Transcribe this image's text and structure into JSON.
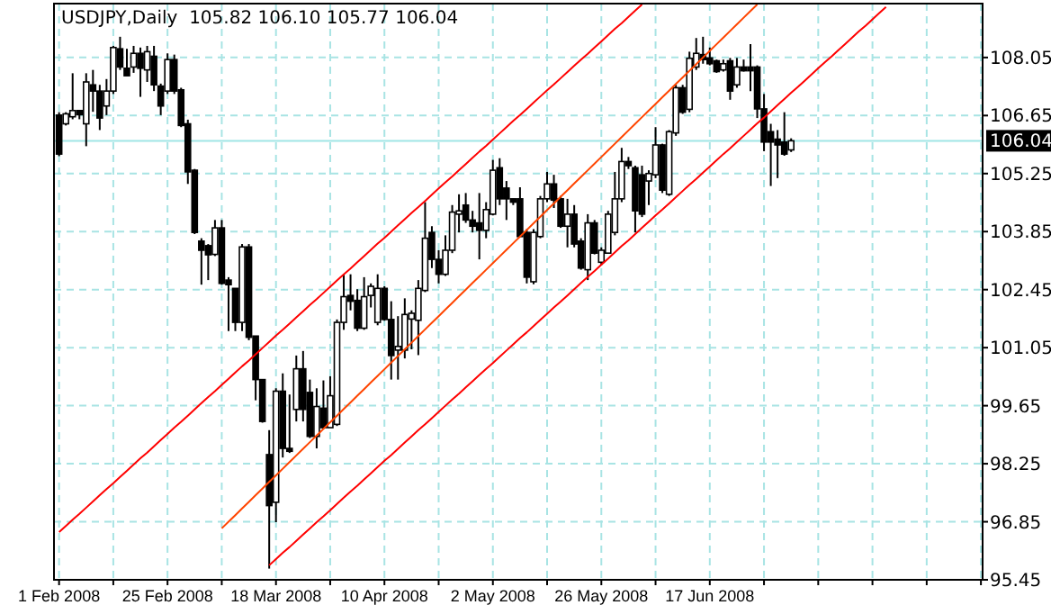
{
  "chart_data": {
    "type": "candlestick",
    "title": "USDJPY,Daily  105.82 106.10 105.77 106.04",
    "categories": [
      "1 Feb 2008",
      null,
      null,
      null,
      null,
      null,
      null,
      null,
      null,
      null,
      null,
      null,
      null,
      null,
      null,
      null,
      "25 Feb 2008",
      null,
      null,
      null,
      null,
      null,
      null,
      null,
      null,
      null,
      null,
      null,
      null,
      null,
      null,
      null,
      "18 Mar 2008",
      null,
      null,
      null,
      null,
      null,
      null,
      null,
      null,
      null,
      null,
      null,
      null,
      null,
      null,
      null,
      "10 Apr 2008",
      null,
      null,
      null,
      null,
      null,
      null,
      null,
      null,
      null,
      null,
      null,
      null,
      null,
      null,
      null,
      "2 May 2008",
      null,
      null,
      null,
      null,
      null,
      null,
      null,
      null,
      null,
      null,
      null,
      null,
      null,
      null,
      null,
      "26 May 2008",
      null,
      null,
      null,
      null,
      null,
      null,
      null,
      null,
      null,
      null,
      null,
      null,
      null,
      null,
      null,
      "17 Jun 2008",
      null,
      null,
      null,
      null,
      null,
      null,
      null,
      null,
      null,
      null,
      null,
      null,
      null,
      null,
      null,
      null,
      null,
      null,
      null,
      null,
      null,
      null,
      null,
      null,
      null,
      null,
      null,
      null,
      null,
      null,
      null,
      null,
      null,
      null,
      null,
      null,
      null,
      null,
      null,
      null
    ],
    "ohlc": [
      [
        106.66,
        106.73,
        105.67,
        105.72
      ],
      [
        106.45,
        106.73,
        106.41,
        106.69
      ],
      [
        106.62,
        107.67,
        106.56,
        106.77
      ],
      [
        106.77,
        106.77,
        106.56,
        106.67
      ],
      [
        106.45,
        107.67,
        105.91,
        107.46
      ],
      [
        107.39,
        107.75,
        106.74,
        107.24
      ],
      [
        107.24,
        107.39,
        106.3,
        106.59
      ],
      [
        106.88,
        107.53,
        106.66,
        107.24
      ],
      [
        107.24,
        108.33,
        107.17,
        108.29
      ],
      [
        108.26,
        108.55,
        107.75,
        107.82
      ],
      [
        107.79,
        108.26,
        107.61,
        107.61
      ],
      [
        107.82,
        108.33,
        107.68,
        108.15
      ],
      [
        108.15,
        108.29,
        107.1,
        107.79
      ],
      [
        107.75,
        108.33,
        107.46,
        108.19
      ],
      [
        108.08,
        108.33,
        107.24,
        107.39
      ],
      [
        107.36,
        107.42,
        106.66,
        106.88
      ],
      [
        107.24,
        108.15,
        107.17,
        108.0
      ],
      [
        108.0,
        108.12,
        107.17,
        107.24
      ],
      [
        107.27,
        107.32,
        106.37,
        106.41
      ],
      [
        106.45,
        106.55,
        105.0,
        105.29
      ],
      [
        105.33,
        105.36,
        103.79,
        103.83
      ],
      [
        103.62,
        103.69,
        102.57,
        103.4
      ],
      [
        103.51,
        103.55,
        102.68,
        103.29
      ],
      [
        103.3,
        104.13,
        103.26,
        103.94
      ],
      [
        103.94,
        104.13,
        102.57,
        102.6
      ],
      [
        102.68,
        102.75,
        101.45,
        102.57
      ],
      [
        102.48,
        102.48,
        101.45,
        101.66
      ],
      [
        101.66,
        103.55,
        101.45,
        103.48
      ],
      [
        103.48,
        103.55,
        101.23,
        101.3
      ],
      [
        101.33,
        101.33,
        99.78,
        100.28
      ],
      [
        100.28,
        100.28,
        99.24,
        99.27
      ],
      [
        98.47,
        99.06,
        95.72,
        97.24
      ],
      [
        97.32,
        100.07,
        96.84,
        100.0
      ],
      [
        100.0,
        100.43,
        98.4,
        98.62
      ],
      [
        98.62,
        99.92,
        98.51,
        98.55
      ],
      [
        99.56,
        100.86,
        99.27,
        100.54
      ],
      [
        100.54,
        100.97,
        99.27,
        99.56
      ],
      [
        99.97,
        100.28,
        98.87,
        98.91
      ],
      [
        98.91,
        100.07,
        98.62,
        99.63
      ],
      [
        99.59,
        100.26,
        99.09,
        99.12
      ],
      [
        99.12,
        100.36,
        99.12,
        99.89
      ],
      [
        99.2,
        101.73,
        99.16,
        101.66
      ],
      [
        101.66,
        102.82,
        101.48,
        102.28
      ],
      [
        102.31,
        102.82,
        101.95,
        102.17
      ],
      [
        102.19,
        102.46,
        101.45,
        101.52
      ],
      [
        101.52,
        102.75,
        101.48,
        102.28
      ],
      [
        102.31,
        102.6,
        102.02,
        102.53
      ],
      [
        101.66,
        102.82,
        101.59,
        102.48
      ],
      [
        102.48,
        102.53,
        101.7,
        101.73
      ],
      [
        101.73,
        102.17,
        100.28,
        100.86
      ],
      [
        100.99,
        101.81,
        100.28,
        101.08
      ],
      [
        100.99,
        102.24,
        100.79,
        101.85
      ],
      [
        101.74,
        101.95,
        101.01,
        101.88
      ],
      [
        101.71,
        102.68,
        100.87,
        102.48
      ],
      [
        102.43,
        104.56,
        102.39,
        103.69
      ],
      [
        103.83,
        103.98,
        102.97,
        103.18
      ],
      [
        103.18,
        103.4,
        102.6,
        102.82
      ],
      [
        102.82,
        103.76,
        102.78,
        103.4
      ],
      [
        103.4,
        104.49,
        103.33,
        104.32
      ],
      [
        104.27,
        104.75,
        103.83,
        104.35
      ],
      [
        104.49,
        104.78,
        104.06,
        104.13
      ],
      [
        104.13,
        104.35,
        103.83,
        103.98
      ],
      [
        104.06,
        104.78,
        103.18,
        103.88
      ],
      [
        103.88,
        104.56,
        103.69,
        104.38
      ],
      [
        104.27,
        105.58,
        104.24,
        105.33
      ],
      [
        105.39,
        105.62,
        104.49,
        104.64
      ],
      [
        104.9,
        105.07,
        104.13,
        104.64
      ],
      [
        104.64,
        104.64,
        104.49,
        104.56
      ],
      [
        104.64,
        104.92,
        103.73,
        103.73
      ],
      [
        103.83,
        103.91,
        102.6,
        102.75
      ],
      [
        102.64,
        103.91,
        102.58,
        103.83
      ],
      [
        103.73,
        104.71,
        103.69,
        104.64
      ],
      [
        104.64,
        105.29,
        104.56,
        105.0
      ],
      [
        105.0,
        105.22,
        104.42,
        104.61
      ],
      [
        104.64,
        104.71,
        103.94,
        103.98
      ],
      [
        103.98,
        104.64,
        103.47,
        104.27
      ],
      [
        104.27,
        104.49,
        103.47,
        103.55
      ],
      [
        103.62,
        103.69,
        102.93,
        102.97
      ],
      [
        102.93,
        104.27,
        102.68,
        104.06
      ],
      [
        104.06,
        104.13,
        103.3,
        103.33
      ],
      [
        103.11,
        103.47,
        103.04,
        103.4
      ],
      [
        103.33,
        104.35,
        103.33,
        104.27
      ],
      [
        103.83,
        105.29,
        103.76,
        104.64
      ],
      [
        104.64,
        105.87,
        104.56,
        105.54
      ],
      [
        105.54,
        105.65,
        105.36,
        105.44
      ],
      [
        105.39,
        105.44,
        103.83,
        104.35
      ],
      [
        105.22,
        105.44,
        104.2,
        104.27
      ],
      [
        105.07,
        105.33,
        104.49,
        105.25
      ],
      [
        105.22,
        106.37,
        105.14,
        105.94
      ],
      [
        105.94,
        105.97,
        104.78,
        104.85
      ],
      [
        104.75,
        106.3,
        104.71,
        106.26
      ],
      [
        106.23,
        107.39,
        106.16,
        107.32
      ],
      [
        107.32,
        107.39,
        106.69,
        106.73
      ],
      [
        106.8,
        108.19,
        106.73,
        108.03
      ],
      [
        107.82,
        108.52,
        107.75,
        108.15
      ],
      [
        108.12,
        108.55,
        107.9,
        108.0
      ],
      [
        108.04,
        108.29,
        107.86,
        107.9
      ],
      [
        107.97,
        108.0,
        107.68,
        107.71
      ],
      [
        107.75,
        108.0,
        107.71,
        107.9
      ],
      [
        107.97,
        108.04,
        107.03,
        107.24
      ],
      [
        107.39,
        108.04,
        107.32,
        107.82
      ],
      [
        107.82,
        108.0,
        107.71,
        107.73
      ],
      [
        107.82,
        108.37,
        107.24,
        107.73
      ],
      [
        107.82,
        107.86,
        106.59,
        106.81
      ],
      [
        106.81,
        107.17,
        105.79,
        106.01
      ],
      [
        106.26,
        106.45,
        104.95,
        106.01
      ],
      [
        106.08,
        106.3,
        105.14,
        105.94
      ],
      [
        106.01,
        106.73,
        105.68,
        105.72
      ],
      [
        105.82,
        106.1,
        105.77,
        106.04
      ],
      null,
      null,
      null,
      null,
      null,
      null,
      null,
      null,
      null,
      null,
      null,
      null,
      null,
      null,
      null,
      null,
      null,
      null,
      null,
      null,
      null,
      null,
      null,
      null,
      null,
      null,
      null,
      null
    ],
    "series": [
      {
        "type": "line",
        "color": "#ff0000",
        "values": [
          96.6,
          96.75,
          96.9,
          97.04,
          97.19,
          97.34,
          97.49,
          97.64,
          97.78,
          97.93,
          98.08,
          98.23,
          98.38,
          98.52,
          98.67,
          98.82,
          98.97,
          99.12,
          99.26,
          99.41,
          99.56,
          99.71,
          99.86,
          100.0,
          100.15,
          100.3,
          100.45,
          100.6,
          100.74,
          100.89,
          101.04,
          101.19,
          101.34,
          101.48,
          101.63,
          101.78,
          101.93,
          102.08,
          102.22,
          102.37,
          102.52,
          102.67,
          102.82,
          102.96,
          103.11,
          103.26,
          103.41,
          103.56,
          103.7,
          103.85,
          104.0,
          104.15,
          104.3,
          104.44,
          104.59,
          104.74,
          104.89,
          105.04,
          105.18,
          105.33,
          105.48,
          105.63,
          105.78,
          105.92,
          106.07,
          106.22,
          106.37,
          106.52,
          106.66,
          106.81,
          106.96,
          107.11,
          107.26,
          107.4,
          107.55,
          107.7,
          107.85,
          108.0,
          108.14,
          108.29,
          108.44,
          108.59,
          108.74,
          108.88,
          109.03,
          109.18,
          109.33,
          null,
          null,
          null,
          null,
          null,
          null,
          null,
          null,
          null,
          null,
          null,
          null,
          null,
          null,
          null,
          null,
          null,
          null,
          null,
          null,
          null,
          null,
          null,
          null,
          null,
          null,
          null,
          null,
          null,
          null,
          null,
          null,
          null,
          null,
          null,
          null,
          null,
          null,
          null,
          null,
          null,
          null,
          null,
          null,
          null,
          null,
          null,
          null,
          null,
          null
        ]
      },
      {
        "type": "line",
        "color": "#ff4500",
        "values": [
          null,
          null,
          null,
          null,
          null,
          null,
          null,
          null,
          null,
          null,
          null,
          null,
          null,
          null,
          null,
          null,
          null,
          null,
          null,
          null,
          null,
          null,
          null,
          null,
          96.69,
          96.85,
          97.01,
          97.17,
          97.33,
          97.49,
          97.65,
          97.81,
          97.97,
          98.13,
          98.29,
          98.45,
          98.61,
          98.77,
          98.93,
          99.09,
          99.25,
          99.41,
          99.57,
          99.73,
          99.89,
          100.05,
          100.21,
          100.37,
          100.53,
          100.69,
          100.85,
          101.01,
          101.17,
          101.33,
          101.49,
          101.65,
          101.81,
          101.97,
          102.13,
          102.29,
          102.45,
          102.61,
          102.77,
          102.93,
          103.09,
          103.25,
          103.41,
          103.57,
          103.73,
          103.89,
          104.05,
          104.21,
          104.37,
          104.53,
          104.69,
          104.85,
          105.01,
          105.17,
          105.33,
          105.49,
          105.65,
          105.81,
          105.97,
          106.13,
          106.29,
          106.45,
          106.61,
          106.77,
          106.93,
          107.09,
          107.25,
          107.41,
          107.57,
          107.73,
          107.89,
          108.05,
          108.21,
          108.37,
          108.53,
          108.69,
          108.85,
          109.01,
          109.17,
          109.33,
          null,
          null,
          null,
          null,
          null,
          null,
          null,
          null,
          null,
          null,
          null,
          null,
          null,
          null,
          null,
          null,
          null,
          null,
          null,
          null,
          null,
          null,
          null,
          null,
          null,
          null,
          null,
          null,
          null,
          null,
          null,
          null,
          null
        ]
      },
      {
        "type": "line",
        "color": "#ff0000",
        "values": [
          null,
          null,
          null,
          null,
          null,
          null,
          null,
          null,
          null,
          null,
          null,
          null,
          null,
          null,
          null,
          null,
          null,
          null,
          null,
          null,
          null,
          null,
          null,
          null,
          null,
          null,
          null,
          null,
          null,
          null,
          null,
          95.8,
          95.95,
          96.1,
          96.24,
          96.39,
          96.54,
          96.69,
          96.84,
          96.98,
          97.13,
          97.28,
          97.43,
          97.58,
          97.72,
          97.87,
          98.02,
          98.17,
          98.32,
          98.46,
          98.61,
          98.76,
          98.91,
          99.06,
          99.2,
          99.35,
          99.5,
          99.65,
          99.8,
          99.94,
          100.09,
          100.24,
          100.39,
          100.54,
          100.68,
          100.83,
          100.98,
          101.13,
          101.28,
          101.42,
          101.57,
          101.72,
          101.87,
          102.02,
          102.16,
          102.31,
          102.46,
          102.61,
          102.76,
          102.9,
          103.05,
          103.2,
          103.35,
          103.5,
          103.64,
          103.79,
          103.94,
          104.09,
          104.24,
          104.38,
          104.53,
          104.68,
          104.83,
          104.98,
          105.12,
          105.27,
          105.42,
          105.57,
          105.72,
          105.86,
          106.01,
          106.16,
          106.31,
          106.46,
          106.6,
          106.75,
          106.9,
          107.05,
          107.2,
          107.34,
          107.49,
          107.64,
          107.79,
          107.94,
          108.08,
          108.23,
          108.38,
          108.53,
          108.68,
          108.82,
          108.97,
          109.12,
          109.27,
          null,
          null,
          null,
          null,
          null,
          null,
          null,
          null,
          null,
          null,
          null,
          null,
          null,
          null
        ]
      }
    ],
    "ylim": [
      95.45,
      109.35
    ],
    "yticks": [
      95.45,
      96.85,
      98.25,
      99.65,
      101.05,
      102.45,
      103.85,
      105.25,
      106.65,
      108.05
    ],
    "ref_lines": [
      {
        "axis": "y",
        "value": 106.04,
        "label": "106.04",
        "color": "#a0e6e6"
      }
    ],
    "grid": true
  }
}
